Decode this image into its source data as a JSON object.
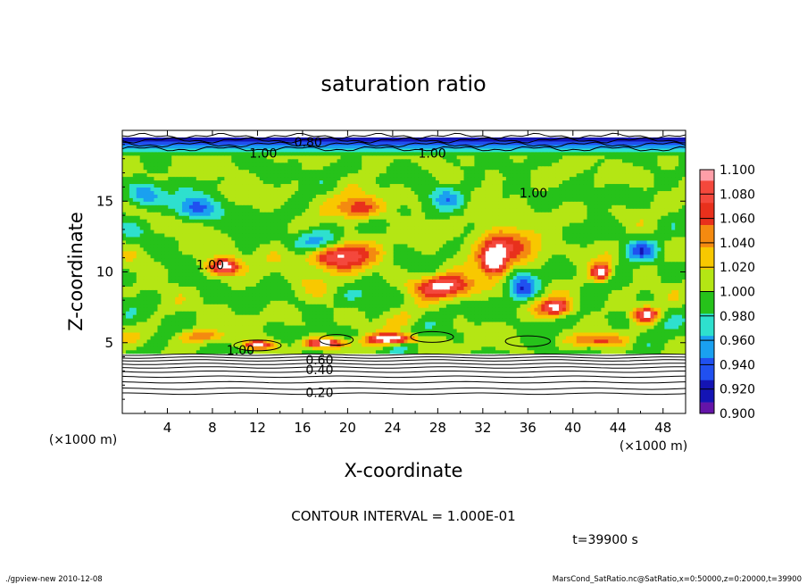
{
  "chart_data": {
    "type": "heatmap",
    "title": "saturation ratio",
    "xlabel": "X-coordinate",
    "ylabel": "Z-coordinate",
    "x_unit": "(×1000 m)",
    "y_unit": "(×1000 m)",
    "xlim": [
      0,
      50
    ],
    "ylim": [
      0,
      20
    ],
    "x_ticks": [
      "4",
      "8",
      "12",
      "16",
      "20",
      "24",
      "28",
      "32",
      "36",
      "40",
      "44",
      "48"
    ],
    "y_ticks": [
      "5",
      "10",
      "15"
    ],
    "colorbar": {
      "levels": [
        "1.100",
        "1.080",
        "1.060",
        "1.040",
        "1.020",
        "1.000",
        "0.980",
        "0.960",
        "0.940",
        "0.920",
        "0.900"
      ],
      "colors": [
        "#ff9ea8",
        "#f4483c",
        "#e8301c",
        "#f48a10",
        "#f8c800",
        "#b4e614",
        "#26c21a",
        "#2ee0ce",
        "#1aa0f0",
        "#2050f0",
        "#1414b4",
        "#6414a8"
      ]
    },
    "contour_labels": [
      "0.80",
      "1.00",
      "1.00",
      "1.00",
      "1.00",
      "1.00",
      "0.60",
      "0.40",
      "0.20"
    ],
    "contour_interval_text": "CONTOUR INTERVAL = 1.000E-01",
    "time_text": "t=39900 s"
  },
  "footer": {
    "left": "./gpview-new   2010-12-08",
    "right": "MarsCond_SatRatio.nc@SatRatio,x=0:50000,z=0:20000,t=39900"
  }
}
